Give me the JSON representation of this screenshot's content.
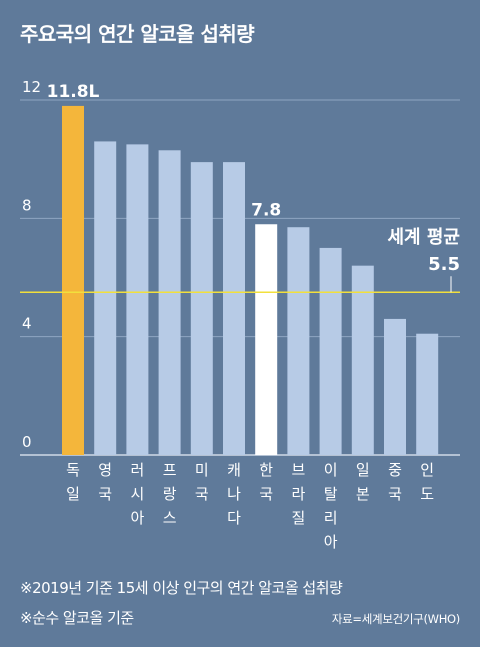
{
  "title": "주요국의 연간 알코올 섭취량",
  "colors": {
    "background": "#5f7a9a",
    "bar_default": "#b7cbe6",
    "bar_highlight_top": "#f4b63b",
    "bar_highlight_korea": "#ffffff",
    "average_line": "#f2e03c",
    "grid": "#8fa6c2"
  },
  "chart_data": {
    "type": "bar",
    "categories": [
      "독일",
      "영국",
      "러시아",
      "프랑스",
      "미국",
      "캐나다",
      "한국",
      "브라질",
      "이탈리아",
      "일본",
      "중국",
      "인도"
    ],
    "values": [
      11.8,
      10.6,
      10.5,
      10.3,
      9.9,
      9.9,
      7.8,
      7.7,
      7.0,
      6.4,
      4.6,
      4.1
    ],
    "highlight": {
      "독일": "top",
      "한국": "korea"
    },
    "value_labels": [
      {
        "category": "독일",
        "text": "11.8L"
      },
      {
        "category": "한국",
        "text": "7.8"
      }
    ],
    "yticks": [
      "0",
      "4",
      "8",
      "12"
    ],
    "ylim": [
      0,
      12
    ],
    "grid": true,
    "average": {
      "label": "세계 평균",
      "value": 5.5,
      "value_text": "5.5"
    }
  },
  "footnotes": [
    "※2019년 기준 15세 이상 인구의 연간 알코올 섭취량",
    "※순수 알코올 기준"
  ],
  "source": "자료=세계보건기구(WHO)"
}
